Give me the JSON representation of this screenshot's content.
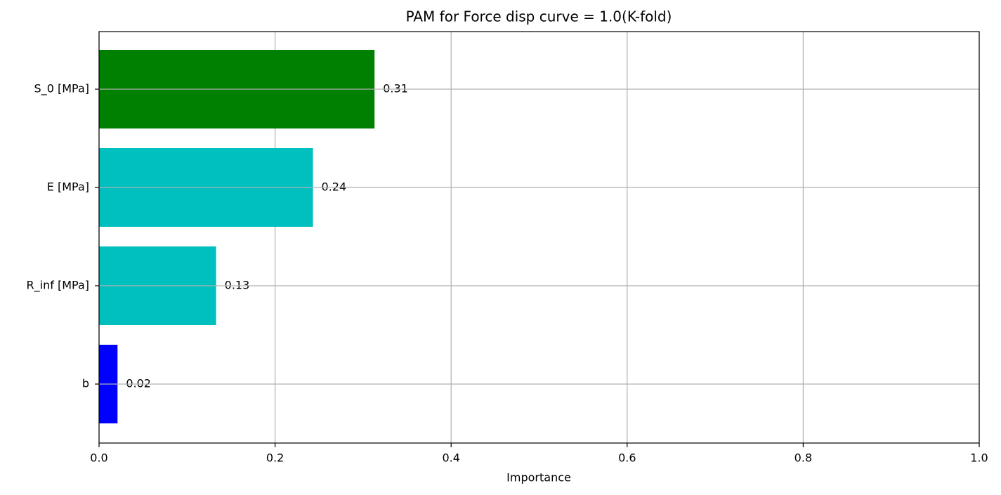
{
  "chart_data": {
    "type": "barh",
    "title": "PAM for Force disp curve = 1.0(K-fold)",
    "xlabel": "Importance",
    "categories": [
      "S_0 [MPa]",
      "E [MPa]",
      "R_inf [MPa]",
      "b"
    ],
    "values": [
      0.313,
      0.243,
      0.133,
      0.021
    ],
    "value_labels": [
      "0.31",
      "0.24",
      "0.13",
      "0.02"
    ],
    "colors": [
      "#008000",
      "#00bfbf",
      "#00bfbf",
      "#0000ff"
    ],
    "xlim": [
      0,
      1
    ],
    "xticks": [
      {
        "value": 0,
        "label": "0.0"
      },
      0.2,
      0.4,
      0.6,
      0.8,
      {
        "value": 1,
        "label": "1.0"
      }
    ],
    "grid": true
  }
}
